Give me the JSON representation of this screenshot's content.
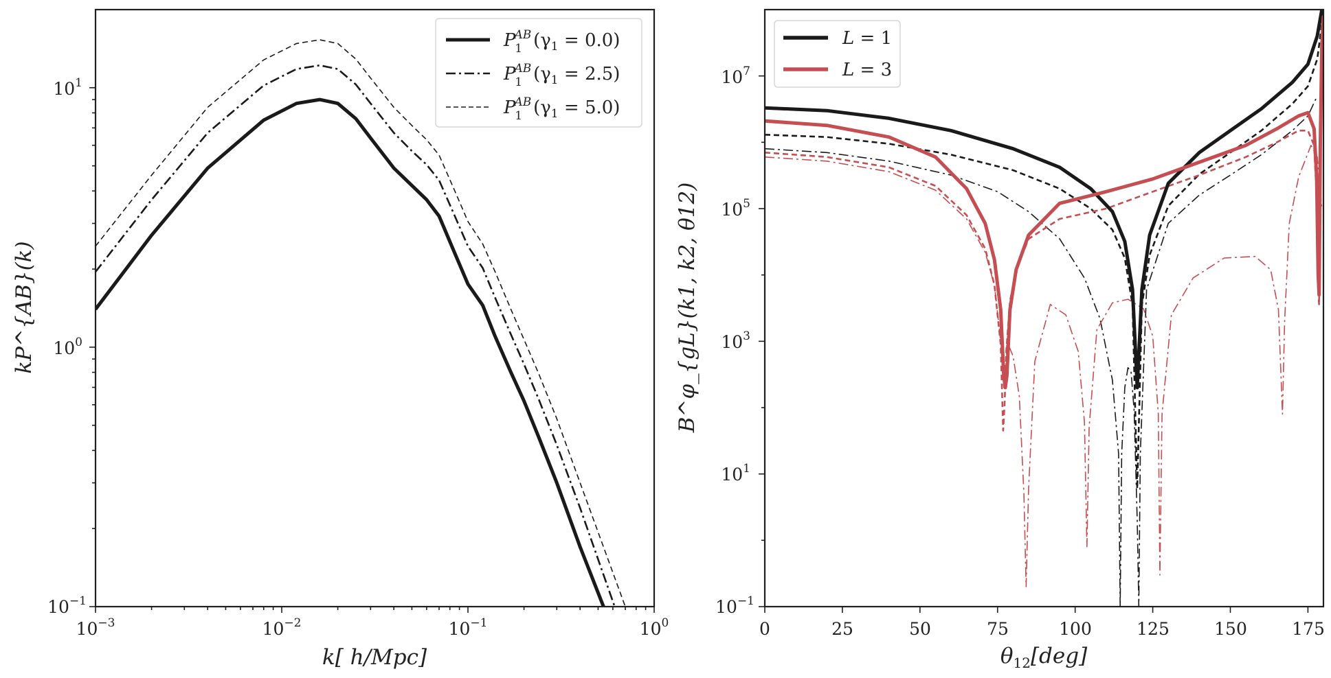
{
  "chart_data": [
    {
      "type": "line",
      "id": "left",
      "xscale": "log",
      "yscale": "log",
      "xlim": [
        0.001,
        1.0
      ],
      "ylim": [
        0.1,
        20.0
      ],
      "xlabel": "k[ h/Mpc]",
      "ylabel": "kP^{AB}(k)",
      "xticks": [
        {
          "value": 0.001,
          "label_base": "10",
          "label_exp": "−3"
        },
        {
          "value": 0.01,
          "label_base": "10",
          "label_exp": "−2"
        },
        {
          "value": 0.1,
          "label_base": "10",
          "label_exp": "−1"
        },
        {
          "value": 1.0,
          "label_base": "10",
          "label_exp": "0"
        }
      ],
      "yticks": [
        {
          "value": 0.1,
          "label_base": "10",
          "label_exp": "−1"
        },
        {
          "value": 1.0,
          "label_base": "10",
          "label_exp": "0"
        },
        {
          "value": 10.0,
          "label_base": "10",
          "label_exp": "1"
        }
      ],
      "legend_position": "top-right",
      "series": [
        {
          "name": "P_1^{AB}(γ1 = 0.0)",
          "legend": {
            "main": "P",
            "sub": "1",
            "sup": "AB",
            "rest": "(γ",
            "rest_sub": "1",
            "rest_end": " = 0.0)"
          },
          "color": "#1a1a1a",
          "style": "solid",
          "width": 5,
          "x": [
            0.001,
            0.002,
            0.004,
            0.008,
            0.012,
            0.016,
            0.02,
            0.025,
            0.03,
            0.04,
            0.05,
            0.06,
            0.07,
            0.085,
            0.1,
            0.12,
            0.14,
            0.17,
            0.2,
            0.24,
            0.3,
            0.4,
            0.55
          ],
          "y": [
            1.4,
            2.7,
            4.9,
            7.5,
            8.7,
            9.0,
            8.7,
            7.6,
            6.4,
            4.9,
            4.2,
            3.7,
            3.2,
            2.3,
            1.75,
            1.45,
            1.1,
            0.8,
            0.62,
            0.45,
            0.3,
            0.17,
            0.095
          ]
        },
        {
          "name": "P_1^{AB}(γ1 = 2.5)",
          "legend": {
            "main": "P",
            "sub": "1",
            "sup": "AB",
            "rest": "(γ",
            "rest_sub": "1",
            "rest_end": " = 2.5)"
          },
          "color": "#1a1a1a",
          "style": "dashdot",
          "width": 2.6,
          "x": [
            0.001,
            0.002,
            0.004,
            0.008,
            0.012,
            0.016,
            0.02,
            0.025,
            0.03,
            0.04,
            0.05,
            0.06,
            0.07,
            0.085,
            0.1,
            0.12,
            0.14,
            0.17,
            0.2,
            0.24,
            0.3,
            0.4,
            0.62
          ],
          "y": [
            1.95,
            3.7,
            6.7,
            10.2,
            11.8,
            12.2,
            11.8,
            10.3,
            8.7,
            6.7,
            5.7,
            5.05,
            4.4,
            3.2,
            2.45,
            2.02,
            1.55,
            1.12,
            0.86,
            0.63,
            0.42,
            0.24,
            0.098
          ]
        },
        {
          "name": "P_1^{AB}(γ1 = 5.0)",
          "legend": {
            "main": "P",
            "sub": "1",
            "sup": "AB",
            "rest": "(γ",
            "rest_sub": "1",
            "rest_end": " = 5.0)"
          },
          "color": "#1a1a1a",
          "style": "dashed",
          "width": 1.6,
          "x": [
            0.001,
            0.002,
            0.004,
            0.008,
            0.012,
            0.016,
            0.02,
            0.025,
            0.03,
            0.04,
            0.05,
            0.06,
            0.07,
            0.085,
            0.1,
            0.12,
            0.14,
            0.17,
            0.2,
            0.24,
            0.3,
            0.4,
            0.7
          ],
          "y": [
            2.45,
            4.6,
            8.4,
            12.8,
            14.8,
            15.3,
            14.8,
            12.9,
            10.9,
            8.4,
            7.15,
            6.3,
            5.5,
            4.0,
            3.05,
            2.5,
            1.95,
            1.4,
            1.07,
            0.79,
            0.53,
            0.3,
            0.1
          ]
        }
      ]
    },
    {
      "type": "line",
      "id": "right",
      "xscale": "linear",
      "yscale": "log",
      "xlim": [
        0,
        180
      ],
      "ylim": [
        0.1,
        100000000
      ],
      "xlabel": "θ12[deg]",
      "xlabel_parts": {
        "main": "θ",
        "sub": "12",
        "rest": "[deg]"
      },
      "ylabel": "B^φ_{gL}(k1, k2, θ12)",
      "xticks": [
        {
          "value": 0,
          "label": "0"
        },
        {
          "value": 25,
          "label": "25"
        },
        {
          "value": 50,
          "label": "50"
        },
        {
          "value": 75,
          "label": "75"
        },
        {
          "value": 100,
          "label": "100"
        },
        {
          "value": 125,
          "label": "125"
        },
        {
          "value": 150,
          "label": "150"
        },
        {
          "value": 175,
          "label": "175"
        }
      ],
      "yticks": [
        {
          "value": 0.1,
          "label_base": "10",
          "label_exp": "−1"
        },
        {
          "value": 10,
          "label_base": "10",
          "label_exp": "1"
        },
        {
          "value": 1000,
          "label_base": "10",
          "label_exp": "3"
        },
        {
          "value": 100000,
          "label_base": "10",
          "label_exp": "5"
        },
        {
          "value": 10000000,
          "label_base": "10",
          "label_exp": "7"
        }
      ],
      "legend_position": "top-left",
      "legend": [
        {
          "label_main": "L",
          "label_rest": " = 1",
          "color": "#1a1a1a"
        },
        {
          "label_main": "L",
          "label_rest": " = 3",
          "color": "#c44e52"
        }
      ],
      "series": [
        {
          "name": "L = 1 (thick)",
          "color": "#1a1a1a",
          "style": "solid",
          "width": 5,
          "x": [
            0,
            20,
            40,
            60,
            80,
            95,
            105,
            112,
            116,
            118.5,
            120,
            121.5,
            124,
            130,
            140,
            150,
            160,
            170,
            175,
            178,
            179.5
          ],
          "y": [
            3300000,
            3000000,
            2300000,
            1500000,
            800000,
            420000,
            200000,
            90000,
            32000,
            6000,
            200,
            6000,
            40000,
            240000,
            700000,
            1500000,
            3200000,
            8000000,
            15000000,
            40000000,
            100000000
          ]
        },
        {
          "name": "L = 1 (dashed)",
          "color": "#1a1a1a",
          "style": "dashed",
          "width": 2.6,
          "x": [
            0,
            20,
            40,
            60,
            80,
            95,
            105,
            112,
            116,
            118.5,
            120,
            121.5,
            124,
            130,
            140,
            150,
            160,
            170,
            175,
            178,
            179.5
          ],
          "y": [
            1300000,
            1200000,
            950000,
            650000,
            380000,
            200000,
            100000,
            48000,
            18000,
            3500,
            6,
            3500,
            20000,
            110000,
            330000,
            700000,
            1500000,
            3800000,
            7000000,
            18000000,
            60000000
          ]
        },
        {
          "name": "L = 1 (dashdot)",
          "color": "#1a1a1a",
          "style": "dashdot",
          "width": 1.6,
          "x": [
            0,
            20,
            40,
            60,
            75,
            85,
            95,
            103,
            108,
            112,
            114,
            114.5,
            115,
            116,
            117,
            118,
            119,
            120,
            120.5,
            121,
            123,
            130,
            140,
            150,
            160,
            170,
            175,
            178
          ],
          "y": [
            800000,
            700000,
            520000,
            320000,
            180000,
            90000,
            35000,
            9000,
            2200,
            260,
            20,
            0.1,
            20,
            200,
            400,
            350,
            90,
            2,
            0.1,
            20,
            6000,
            60000,
            160000,
            320000,
            650000,
            1500000,
            2500000,
            5000000
          ]
        },
        {
          "name": "L = 3 (thick)",
          "color": "#c44e52",
          "style": "solid",
          "width": 5,
          "x": [
            0,
            20,
            40,
            55,
            65,
            71,
            74,
            76,
            77,
            77.5,
            78,
            79,
            81,
            85,
            95,
            110,
            125,
            140,
            155,
            165,
            172,
            175,
            177,
            177.8,
            178.3,
            178.6,
            179,
            179.5,
            180
          ],
          "y": [
            2100000,
            1800000,
            1200000,
            600000,
            200000,
            60000,
            17000,
            3000,
            300,
            200,
            300,
            3000,
            12000,
            40000,
            120000,
            180000,
            280000,
            500000,
            900000,
            1600000,
            2500000,
            2800000,
            1600000,
            300000,
            10000,
            5000,
            1000000,
            30000000,
            80000000
          ]
        },
        {
          "name": "L = 3 (dashed)",
          "color": "#c44e52",
          "style": "dashed",
          "width": 2.6,
          "x": [
            0,
            20,
            40,
            55,
            65,
            71,
            74,
            76,
            76.8,
            77.3,
            77.8,
            79,
            81,
            85,
            95,
            110,
            125,
            140,
            155,
            165,
            172,
            175,
            177,
            177.8,
            178.3,
            178.6,
            179,
            179.5,
            180
          ],
          "y": [
            700000,
            600000,
            420000,
            220000,
            80000,
            25000,
            7000,
            900,
            45,
            120,
            700,
            4000,
            12000,
            35000,
            70000,
            100000,
            180000,
            320000,
            600000,
            1000000,
            1500000,
            1500000,
            900000,
            150000,
            6000,
            3500,
            600000,
            15000000,
            45000000
          ]
        },
        {
          "name": "L = 3 (dashdot)",
          "color": "#c44e52",
          "style": "dashdot",
          "width": 1.6,
          "x": [
            0,
            20,
            40,
            55,
            65,
            71,
            74,
            76,
            77,
            77.5,
            78,
            80,
            82,
            83.5,
            84.2,
            85,
            87,
            92,
            97,
            101,
            103,
            103.8,
            104.5,
            107,
            112,
            117,
            122,
            125,
            126.8,
            127.3,
            128,
            131,
            138,
            148,
            158,
            163,
            165.5,
            166.8,
            167.5,
            169,
            172,
            176,
            178,
            179.5
          ],
          "y": [
            600000,
            520000,
            360000,
            190000,
            70000,
            22000,
            7000,
            1000,
            200,
            250,
            1000,
            600,
            150,
            5,
            0.2,
            6,
            500,
            3600,
            2500,
            700,
            60,
            0.8,
            50,
            1500,
            3800,
            4300,
            3100,
            1200,
            80,
            0.3,
            80,
            2500,
            9000,
            18000,
            19000,
            12000,
            3000,
            80,
            2000,
            60000,
            300000,
            900000,
            600000,
            100000
          ]
        }
      ]
    }
  ]
}
